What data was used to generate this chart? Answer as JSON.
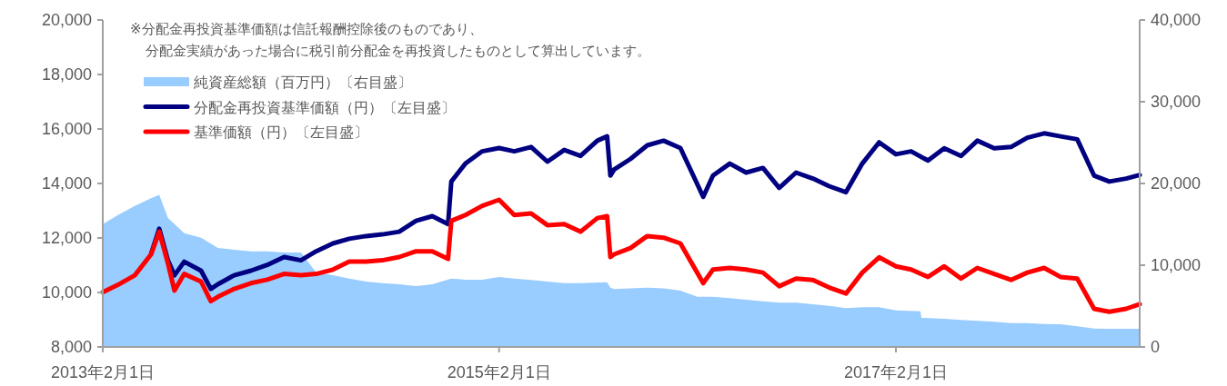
{
  "chart_data": {
    "type": "line",
    "annotations": [
      "※分配金再投資基準価額は信託報酬控除後のものであり、",
      "分配金実績があった場合に税引前分配金を再投資したものとして算出しています。"
    ],
    "x": [
      "2013-02-01",
      "2013-03-01",
      "2013-04-01",
      "2013-05-01",
      "2013-05-16",
      "2013-06-01",
      "2013-06-13",
      "2013-07-01",
      "2013-08-01",
      "2013-08-19",
      "2013-09-01",
      "2013-10-01",
      "2013-11-01",
      "2013-12-01",
      "2014-01-01",
      "2014-02-01",
      "2014-03-01",
      "2014-04-01",
      "2014-05-01",
      "2014-06-01",
      "2014-07-01",
      "2014-08-01",
      "2014-09-01",
      "2014-10-01",
      "2014-10-30",
      "2014-11-05",
      "2014-12-01",
      "2015-01-01",
      "2015-02-01",
      "2015-03-01",
      "2015-04-01",
      "2015-05-01",
      "2015-06-01",
      "2015-07-01",
      "2015-08-01",
      "2015-08-19",
      "2015-08-25",
      "2015-09-01",
      "2015-10-01",
      "2015-11-01",
      "2015-12-01",
      "2016-01-01",
      "2016-02-12",
      "2016-03-01",
      "2016-04-01",
      "2016-05-01",
      "2016-06-01",
      "2016-07-01",
      "2016-08-01",
      "2016-09-01",
      "2016-10-01",
      "2016-11-01",
      "2016-12-01",
      "2017-01-01",
      "2017-02-01",
      "2017-03-01",
      "2017-04-01",
      "2017-05-01",
      "2017-06-01",
      "2017-07-01",
      "2017-08-01",
      "2017-09-01",
      "2017-10-01",
      "2017-11-01",
      "2017-12-01",
      "2018-01-01",
      "2018-02-01",
      "2018-03-01",
      "2018-04-01",
      "2018-04-26"
    ],
    "series": [
      {
        "name": "純資産総額（百万円）〔右目盛〕",
        "type": "area",
        "axis": "y2",
        "color": "#99ccff",
        "x": [
          "2013-02-01",
          "2013-03-01",
          "2013-04-01",
          "2013-05-01",
          "2013-05-16",
          "2013-06-01",
          "2013-07-01",
          "2013-08-01",
          "2013-09-01",
          "2013-10-01",
          "2013-11-01",
          "2013-12-01",
          "2014-01-01",
          "2014-02-01",
          "2014-03-01",
          "2014-04-01",
          "2014-05-01",
          "2014-06-01",
          "2014-07-01",
          "2014-08-01",
          "2014-09-01",
          "2014-10-01",
          "2014-11-05",
          "2014-12-01",
          "2015-01-01",
          "2015-02-01",
          "2015-03-01",
          "2015-04-01",
          "2015-05-01",
          "2015-06-01",
          "2015-07-01",
          "2015-08-19",
          "2015-08-25",
          "2015-09-01",
          "2015-10-01",
          "2015-11-01",
          "2015-12-01",
          "2016-01-01",
          "2016-02-01",
          "2016-03-01",
          "2016-04-01",
          "2016-05-01",
          "2016-06-01",
          "2016-07-01",
          "2016-08-01",
          "2016-09-01",
          "2016-10-01",
          "2016-11-01",
          "2016-12-01",
          "2017-01-01",
          "2017-02-01",
          "2017-03-18",
          "2017-03-20",
          "2017-05-01",
          "2017-06-01",
          "2017-07-01",
          "2017-08-01",
          "2017-09-01",
          "2017-10-01",
          "2017-11-01",
          "2017-12-01",
          "2018-01-01",
          "2018-02-01",
          "2018-03-01",
          "2018-04-26"
        ],
        "values": [
          15030,
          16150,
          17260,
          18200,
          18600,
          15780,
          13920,
          13370,
          12110,
          11890,
          11700,
          11700,
          11560,
          11560,
          9110,
          8780,
          8370,
          8000,
          7810,
          7670,
          7440,
          7670,
          8370,
          8220,
          8220,
          8560,
          8370,
          8190,
          8000,
          7810,
          7810,
          7920,
          7260,
          7070,
          7180,
          7260,
          7180,
          6890,
          6150,
          6150,
          5960,
          5780,
          5590,
          5410,
          5410,
          5220,
          5030,
          4740,
          4850,
          4850,
          4480,
          4370,
          3560,
          3440,
          3300,
          3190,
          3070,
          2930,
          2930,
          2810,
          2780,
          2520,
          2260,
          2220,
          2220
        ]
      },
      {
        "name": "分配金再投資基準価額（円）〔左目盛〕",
        "type": "line",
        "color": "#000080",
        "values": [
          null,
          null,
          null,
          11420,
          12340,
          11180,
          10630,
          11130,
          10800,
          10130,
          10300,
          10630,
          10800,
          11010,
          11300,
          11180,
          11510,
          11800,
          11970,
          12070,
          12130,
          12230,
          12630,
          12800,
          12510,
          14070,
          14730,
          15180,
          15300,
          15180,
          15340,
          14800,
          15230,
          15010,
          15570,
          15730,
          14290,
          14510,
          14900,
          15400,
          15570,
          15300,
          13510,
          14290,
          14730,
          14400,
          14570,
          13840,
          14400,
          14180,
          13900,
          13680,
          14730,
          15510,
          15070,
          15180,
          14840,
          15290,
          15010,
          15570,
          15290,
          15340,
          15680,
          15840,
          15730,
          15620,
          14290,
          14070,
          14180,
          14310
        ]
      },
      {
        "name": "基準価額（円）〔左目盛〕",
        "type": "line",
        "color": "#ff0000",
        "values": [
          10010,
          10280,
          10630,
          11400,
          12230,
          11070,
          10070,
          10680,
          10400,
          9680,
          9840,
          10130,
          10340,
          10470,
          10680,
          10630,
          10680,
          10840,
          11130,
          11130,
          11180,
          11300,
          11510,
          11510,
          11230,
          12630,
          12840,
          13180,
          13400,
          12840,
          12900,
          12470,
          12510,
          12230,
          12730,
          12800,
          11300,
          11400,
          11630,
          12070,
          12010,
          11800,
          10340,
          10840,
          10900,
          10840,
          10730,
          10230,
          10510,
          10460,
          10180,
          9960,
          10730,
          11290,
          10960,
          10840,
          10570,
          10960,
          10510,
          10900,
          10680,
          10460,
          10730,
          10900,
          10570,
          10510,
          9400,
          9290,
          9400,
          9570
        ]
      }
    ],
    "xlim": [
      "2013-02-01",
      "2018-04-26"
    ],
    "xticks": [
      {
        "value": "2013-02-01",
        "label": "2013年2月1日"
      },
      {
        "value": "2015-02-01",
        "label": "2015年2月1日"
      },
      {
        "value": "2017-02-01",
        "label": "2017年2月1日"
      }
    ],
    "ylim": [
      8000,
      20000
    ],
    "yticks": [
      {
        "value": 8000,
        "label": "8,000"
      },
      {
        "value": 10000,
        "label": "10,000"
      },
      {
        "value": 12000,
        "label": "12,000"
      },
      {
        "value": 14000,
        "label": "14,000"
      },
      {
        "value": 16000,
        "label": "16,000"
      },
      {
        "value": 18000,
        "label": "18,000"
      },
      {
        "value": 20000,
        "label": "20,000"
      }
    ],
    "y2lim": [
      0,
      40000
    ],
    "y2ticks": [
      0,
      {
        "value": 10000,
        "label": "10,000"
      },
      {
        "value": 20000,
        "label": "20,000"
      },
      {
        "value": 30000,
        "label": "30,000"
      },
      {
        "value": 40000,
        "label": "40,000"
      }
    ],
    "legend": "top left"
  }
}
